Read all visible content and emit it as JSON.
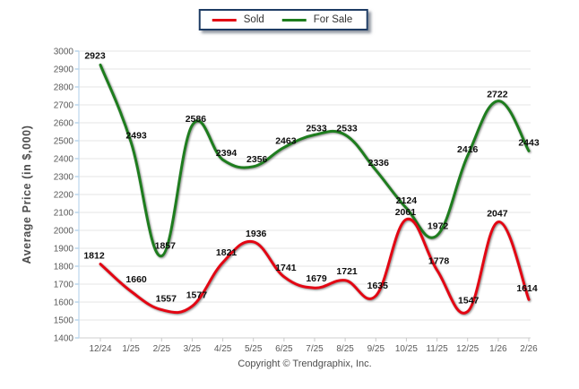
{
  "legend": {
    "items": [
      {
        "label": "Sold",
        "color": "#e30613"
      },
      {
        "label": "For Sale",
        "color": "#1e7d1e"
      }
    ]
  },
  "y_axis": {
    "title": "Average Price (in $,000)"
  },
  "footer": {
    "copyright": "Copyright © Trendgraphix, Inc."
  },
  "chart_data": {
    "type": "line",
    "title": "",
    "xlabel": "",
    "ylabel": "Average Price (in $,000)",
    "ylim": [
      1400,
      3000
    ],
    "ytick_step": 100,
    "grid": "horizontal",
    "legend_position": "top-center",
    "categories": [
      "12/24",
      "1/25",
      "2/25",
      "3/25",
      "4/25",
      "5/25",
      "6/25",
      "7/25",
      "8/25",
      "9/25",
      "10/25",
      "11/25",
      "12/25",
      "1/26",
      "2/26"
    ],
    "series": [
      {
        "name": "For Sale",
        "color": "#1e7d1e",
        "values": [
          2923,
          2493,
          1857,
          2586,
          2394,
          2356,
          2463,
          2533,
          2533,
          2336,
          2124,
          1972,
          2416,
          2722,
          2443
        ]
      },
      {
        "name": "Sold",
        "color": "#e30613",
        "values": [
          1812,
          1660,
          1557,
          1577,
          1821,
          1936,
          1741,
          1679,
          1721,
          1635,
          2061,
          1778,
          1547,
          2047,
          1614
        ]
      }
    ],
    "label_offsets": {
      "For Sale": [
        [
          -6,
          -7
        ],
        [
          6,
          -4
        ],
        [
          4,
          -8
        ],
        [
          4,
          -4
        ],
        [
          4,
          -4
        ],
        [
          4,
          -5
        ],
        [
          2,
          -4
        ],
        [
          2,
          -4
        ],
        [
          2,
          -4
        ],
        [
          3,
          -5
        ],
        [
          0,
          -5
        ],
        [
          1,
          -7
        ],
        [
          0,
          -4
        ],
        [
          -1,
          -4
        ],
        [
          0,
          -6
        ]
      ],
      "Sold": [
        [
          -7,
          -6
        ],
        [
          6,
          -10
        ],
        [
          5,
          -9
        ],
        [
          5,
          -9
        ],
        [
          4,
          -8
        ],
        [
          3,
          -6
        ],
        [
          2,
          -7
        ],
        [
          2,
          -7
        ],
        [
          2,
          -7
        ],
        [
          2,
          -8
        ],
        [
          -1,
          -5
        ],
        [
          2,
          -7
        ],
        [
          1,
          -9
        ],
        [
          -1,
          -6
        ],
        [
          -2,
          -9
        ]
      ]
    }
  }
}
